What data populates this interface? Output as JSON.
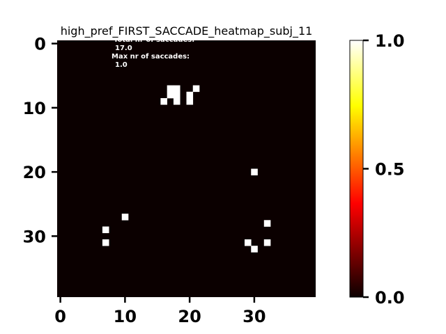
{
  "chart_data": {
    "type": "heatmap",
    "title": "high_pref_FIRST_SACCADE_heatmap_subj_11",
    "grid_size": [
      40,
      40
    ],
    "xlim": [
      -0.5,
      39.5
    ],
    "ylim": [
      39.5,
      -0.5
    ],
    "x_ticks": [
      0,
      10,
      20,
      30
    ],
    "y_ticks": [
      0,
      10,
      20,
      30
    ],
    "colormap": "hot",
    "background_color": "#0b0000",
    "cell_color": "#ffffff",
    "cells": [
      {
        "x": 17,
        "y": 7,
        "value": 1.0
      },
      {
        "x": 18,
        "y": 7,
        "value": 1.0
      },
      {
        "x": 21,
        "y": 7,
        "value": 1.0
      },
      {
        "x": 17,
        "y": 8,
        "value": 1.0
      },
      {
        "x": 18,
        "y": 8,
        "value": 1.0
      },
      {
        "x": 20,
        "y": 8,
        "value": 1.0
      },
      {
        "x": 16,
        "y": 9,
        "value": 1.0
      },
      {
        "x": 18,
        "y": 9,
        "value": 1.0
      },
      {
        "x": 20,
        "y": 9,
        "value": 1.0
      },
      {
        "x": 30,
        "y": 20,
        "value": 1.0
      },
      {
        "x": 10,
        "y": 27,
        "value": 1.0
      },
      {
        "x": 32,
        "y": 28,
        "value": 1.0
      },
      {
        "x": 7,
        "y": 29,
        "value": 1.0
      },
      {
        "x": 7,
        "y": 31,
        "value": 1.0
      },
      {
        "x": 29,
        "y": 31,
        "value": 1.0
      },
      {
        "x": 32,
        "y": 31,
        "value": 1.0
      },
      {
        "x": 30,
        "y": 32,
        "value": 1.0
      }
    ],
    "annotation": {
      "line1": "Total nr of saccades:",
      "line2": "17.0",
      "line3": "Max nr of saccades:",
      "line4": "1.0"
    },
    "colorbar": {
      "range": [
        0.0,
        1.0
      ],
      "ticks": [
        {
          "value": 0.0,
          "label": "0.0"
        },
        {
          "value": 0.5,
          "label": "0.5"
        },
        {
          "value": 1.0,
          "label": "1.0"
        }
      ]
    }
  }
}
